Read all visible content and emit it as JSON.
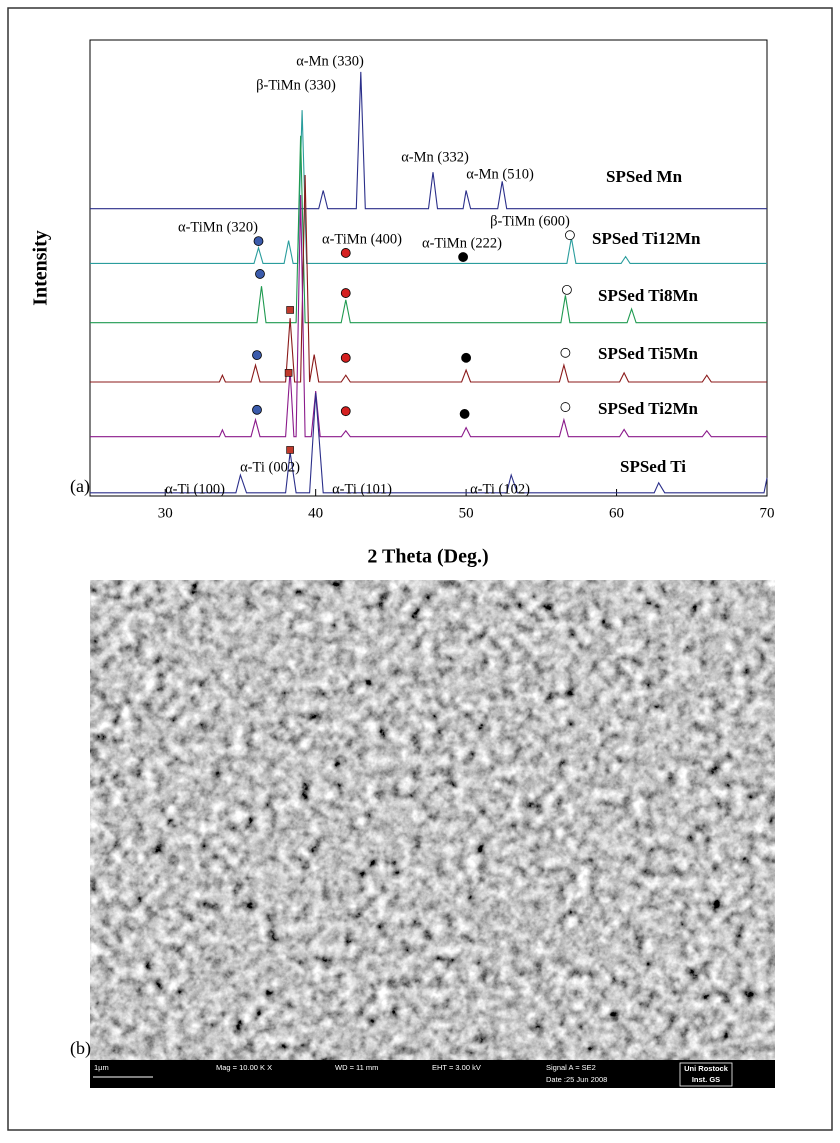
{
  "chart_data": {
    "type": "line",
    "panel_label": "(a)",
    "xlabel": "2 Theta (Deg.)",
    "ylabel": "Intensity",
    "xlim": [
      25,
      70
    ],
    "xticks": [
      30,
      40,
      50,
      60,
      70
    ],
    "ylim": [
      0,
      100
    ],
    "series": [
      {
        "name": "SPSed Mn",
        "color": "#2b2f8a",
        "x": [
          25,
          40.2,
          40.5,
          40.8,
          42.7,
          43.0,
          43.3,
          47.5,
          47.8,
          48.1,
          49.8,
          50.0,
          50.3,
          52.1,
          52.4,
          52.7,
          70
        ],
        "values": [
          63,
          63,
          67,
          63,
          63,
          93,
          63,
          63,
          71,
          63,
          63,
          67,
          63,
          63,
          69,
          63,
          63
        ]
      },
      {
        "name": "SPSed Ti12Mn",
        "color": "#2a9d9d",
        "x": [
          25,
          35.9,
          36.2,
          36.5,
          37.9,
          38.2,
          38.5,
          38.8,
          39.1,
          39.4,
          56.7,
          57.0,
          57.3,
          60.3,
          60.6,
          60.9,
          70
        ],
        "values": [
          51,
          51,
          54.4,
          51,
          51,
          56,
          51,
          51,
          84.6,
          51,
          51,
          56.6,
          51,
          51,
          52.5,
          51,
          51
        ]
      },
      {
        "name": "SPSed Ti8Mn",
        "color": "#1f9a50",
        "x": [
          25,
          36.1,
          36.4,
          36.7,
          38.7,
          39.0,
          39.3,
          41.7,
          42.0,
          42.3,
          56.3,
          56.6,
          56.9,
          60.7,
          61.0,
          61.3,
          70
        ],
        "values": [
          38,
          38,
          46,
          38,
          38,
          79,
          38,
          38,
          43,
          38,
          38,
          44,
          38,
          38,
          41,
          38,
          38
        ]
      },
      {
        "name": "SPSed Ti5Mn",
        "color": "#8b1a1a",
        "x": [
          25,
          33.6,
          33.8,
          34.0,
          35.7,
          36.0,
          36.3,
          38.0,
          38.3,
          38.6,
          39.0,
          39.3,
          39.6,
          39.9,
          40.2,
          41.7,
          42.0,
          42.3,
          49.7,
          50.0,
          50.3,
          56.2,
          56.5,
          56.8,
          60.2,
          60.5,
          60.8,
          65.7,
          66.0,
          66.3,
          70
        ],
        "values": [
          25,
          25,
          26.5,
          25,
          25,
          28.7,
          25,
          25,
          39,
          25,
          25,
          70.4,
          25,
          31,
          25,
          25,
          26.5,
          25,
          25,
          27.6,
          25,
          25,
          28.7,
          25,
          25,
          27,
          25,
          25,
          26.5,
          25,
          25
        ]
      },
      {
        "name": "SPSed Ti2Mn",
        "color": "#8b1a8b",
        "x": [
          25,
          33.6,
          33.8,
          34.0,
          35.7,
          36.0,
          36.3,
          38.0,
          38.3,
          38.55,
          38.7,
          39.0,
          39.3,
          39.7,
          40.0,
          40.3,
          41.7,
          42.0,
          42.3,
          49.7,
          50.0,
          50.3,
          56.2,
          56.5,
          56.8,
          60.2,
          60.5,
          60.8,
          65.7,
          66.0,
          66.3,
          70
        ],
        "values": [
          13,
          13,
          14.5,
          13,
          13,
          16.7,
          13,
          13,
          27.6,
          13,
          13,
          66,
          13,
          13,
          23,
          13,
          13,
          14.3,
          13,
          13,
          15,
          13,
          13,
          16.7,
          13,
          13,
          14.6,
          13,
          13,
          14.3,
          13,
          13
        ]
      },
      {
        "name": "SPSed Ti",
        "color": "#2b2f8a",
        "x": [
          25,
          34.7,
          35.0,
          35.4,
          38.0,
          38.3,
          38.7,
          39.6,
          40.0,
          40.5,
          52.7,
          53.0,
          53.4,
          62.5,
          62.8,
          63.2,
          69.8,
          70
        ],
        "values": [
          0.7,
          0.7,
          4.6,
          0.7,
          0.7,
          9.6,
          0.7,
          0.7,
          22.6,
          0.7,
          0.7,
          4.6,
          0.7,
          0.7,
          2.9,
          0.7,
          0.7,
          4
        ]
      }
    ],
    "markers": [
      {
        "x": 36.2,
        "y": 55.9,
        "fill": "#3b5bab"
      },
      {
        "x": 36.3,
        "y": 48.7,
        "fill": "#3b5bab"
      },
      {
        "x": 36.1,
        "y": 30.9,
        "fill": "#3b5bab"
      },
      {
        "x": 36.1,
        "y": 18.9,
        "fill": "#3b5bab"
      },
      {
        "x": 42.0,
        "y": 53.3,
        "fill": "#d42020"
      },
      {
        "x": 42.0,
        "y": 44.5,
        "fill": "#d42020"
      },
      {
        "x": 42.0,
        "y": 30.3,
        "fill": "#d42020"
      },
      {
        "x": 42.0,
        "y": 18.6,
        "fill": "#d42020"
      },
      {
        "x": 49.8,
        "y": 52.4,
        "fill": "#000000"
      },
      {
        "x": 50.0,
        "y": 30.3,
        "fill": "#000000"
      },
      {
        "x": 49.9,
        "y": 18.0,
        "fill": "#000000"
      },
      {
        "x": 56.9,
        "y": 57.2,
        "fill": "#ffffff"
      },
      {
        "x": 56.7,
        "y": 45.2,
        "fill": "#ffffff"
      },
      {
        "x": 56.6,
        "y": 31.4,
        "fill": "#ffffff"
      },
      {
        "x": 56.6,
        "y": 19.5,
        "fill": "#ffffff"
      }
    ],
    "square_markers": [
      {
        "x": 38.3,
        "y": 40.8
      },
      {
        "x": 38.2,
        "y": 27
      },
      {
        "x": 38.3,
        "y": 10.1
      }
    ],
    "annotations": [
      "α-Mn (330)",
      "β-TiMn (330)",
      "α-Mn (332)",
      "α-Mn (510)",
      "α-TiMn (320)",
      "α-TiMn (400)",
      "α-TiMn (222)",
      "β-TiMn (600)",
      "α-Ti (002)",
      "α-Ti (100)",
      "α-Ti (101)",
      "α-Ti (102)"
    ]
  },
  "image": {
    "panel_label": "(b)",
    "scale": "1µm",
    "info": [
      "Mag = 10.00 K X",
      "WD =  11 mm",
      "EHT =  3.00 kV",
      "Signal A = SE2",
      "Date :25 Jun 2008"
    ],
    "logo": [
      "Uni Rostock",
      "Inst. GS"
    ]
  }
}
